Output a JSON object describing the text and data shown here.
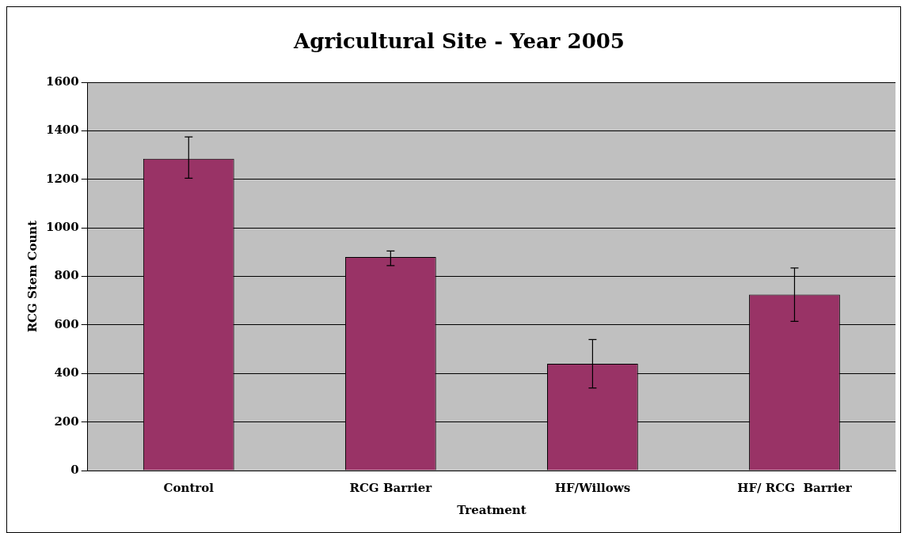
{
  "chart_data": {
    "type": "bar",
    "title": "Agricultural Site - Year 2005",
    "xlabel": "Treatment",
    "ylabel": "RCG Stem Count",
    "categories": [
      "Control",
      "RCG Barrier",
      "HF/Willows",
      "HF/ RCG  Barrier"
    ],
    "values": [
      1285,
      880,
      440,
      725
    ],
    "errors": [
      [
        1205,
        1375
      ],
      [
        845,
        905
      ],
      [
        340,
        540
      ],
      [
        615,
        835
      ]
    ],
    "color": "#993366",
    "ylim": [
      0,
      1600
    ],
    "yticks": [
      0,
      200,
      400,
      600,
      800,
      1000,
      1200,
      1400,
      1600
    ],
    "grid": "y",
    "legend": false
  }
}
